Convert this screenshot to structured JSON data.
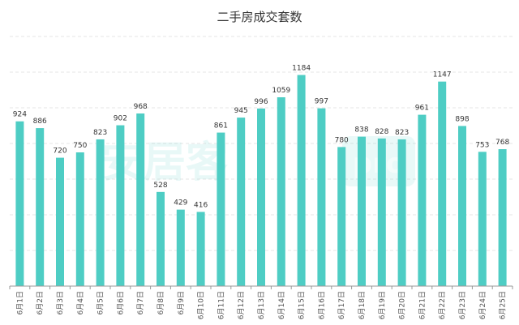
{
  "chart_data": {
    "type": "bar",
    "title": "二手房成交套数",
    "categories": [
      "6月1日",
      "6月2日",
      "6月3日",
      "6月4日",
      "6月5日",
      "6月6日",
      "6月7日",
      "6月8日",
      "6月9日",
      "6月10日",
      "6月11日",
      "6月12日",
      "6月13日",
      "6月14日",
      "6月15日",
      "6月16日",
      "6月17日",
      "6月18日",
      "6月19日",
      "6月20日",
      "6月21日",
      "6月22日",
      "6月23日",
      "6月24日",
      "6月25日"
    ],
    "values": [
      924,
      886,
      720,
      750,
      823,
      902,
      968,
      528,
      429,
      416,
      861,
      945,
      996,
      1059,
      1184,
      997,
      780,
      838,
      828,
      823,
      961,
      1147,
      898,
      753,
      768
    ],
    "xlabel": "",
    "ylabel": "",
    "ylim": [
      0,
      1400
    ],
    "grid": true,
    "legend": "none",
    "bar_color": "#4ecdc4",
    "grid_color": "#e6e6e6",
    "label_color": "#333333"
  },
  "watermark": {
    "text": "安居客",
    "badge": "pro",
    "color": "#4ecdc4"
  }
}
